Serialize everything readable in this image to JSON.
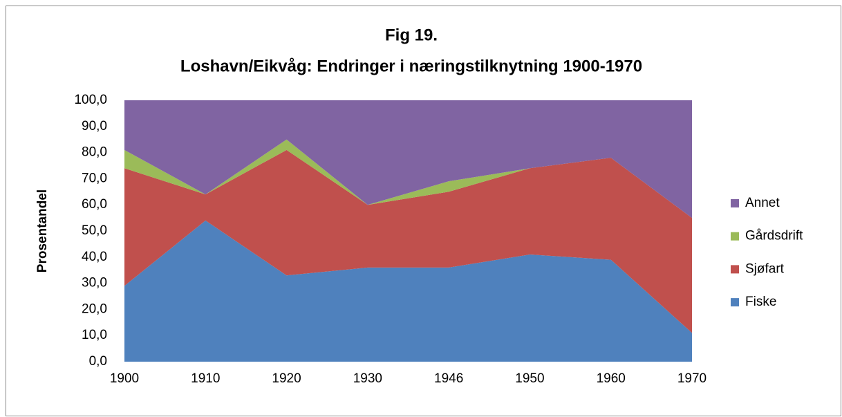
{
  "chart_data": {
    "type": "stacked_area",
    "title": "Fig 19.",
    "subtitle": "Loshavn/Eikvåg: Endringer i næringstilknytning 1900-1970",
    "y_label": "Prosentandel",
    "categories": [
      "1900",
      "1910",
      "1920",
      "1930",
      "1946",
      "1950",
      "1960",
      "1970"
    ],
    "series": [
      {
        "name": "Fiske",
        "color": "#4f81bd",
        "values": [
          29,
          54,
          33,
          36,
          36,
          41,
          39,
          11
        ]
      },
      {
        "name": "Sjøfart",
        "color": "#c0504d",
        "values": [
          45,
          10,
          48,
          24,
          29,
          33,
          39,
          44
        ]
      },
      {
        "name": "Gårdsdrift",
        "color": "#9bbb59",
        "values": [
          7,
          0,
          4,
          0,
          4,
          0,
          0,
          0
        ]
      },
      {
        "name": "Annet",
        "color": "#8064a2",
        "values": [
          19,
          36,
          15,
          40,
          31,
          26,
          22,
          45
        ]
      }
    ],
    "ylim": [
      0,
      100
    ],
    "yticks": [
      {
        "value": 0,
        "label": "0,0"
      },
      {
        "value": 10,
        "label": "10,0"
      },
      {
        "value": 20,
        "label": "20,0"
      },
      {
        "value": 30,
        "label": "30,0"
      },
      {
        "value": 40,
        "label": "40,0"
      },
      {
        "value": 50,
        "label": "50,0"
      },
      {
        "value": 60,
        "label": "60,0"
      },
      {
        "value": 70,
        "label": "70,0"
      },
      {
        "value": 80,
        "label": "80,0"
      },
      {
        "value": 90,
        "label": "90,0"
      },
      {
        "value": 100,
        "label": "100,0"
      }
    ],
    "legend": "right"
  }
}
